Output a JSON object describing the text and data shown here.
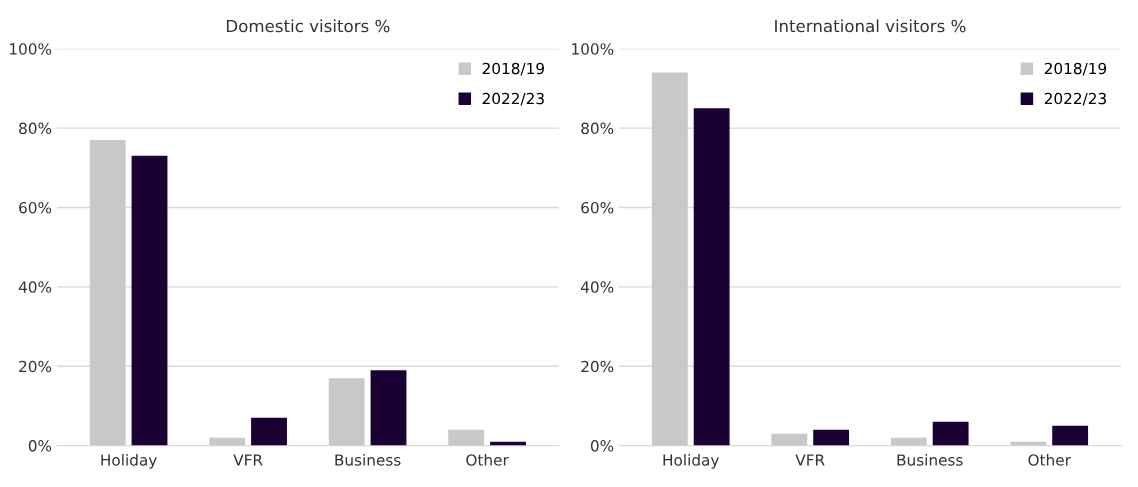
{
  "chart_data": [
    {
      "type": "bar",
      "title": "Domestic visitors %",
      "categories": [
        "Holiday",
        "VFR",
        "Business",
        "Other"
      ],
      "series": [
        {
          "name": "2018/19",
          "color": "#c8c8c8",
          "values": [
            77,
            2,
            17,
            4
          ]
        },
        {
          "name": "2022/23",
          "color": "#1a0033",
          "values": [
            73,
            7,
            19,
            1
          ]
        }
      ],
      "ylim": [
        0,
        100
      ],
      "yticks": [
        {
          "value": 0,
          "label": "0%"
        },
        {
          "value": 20,
          "label": "20%"
        },
        {
          "value": 40,
          "label": "40%"
        },
        {
          "value": 60,
          "label": "60%"
        },
        {
          "value": 80,
          "label": "80%"
        },
        {
          "value": 100,
          "label": "100%"
        }
      ],
      "grid": "y",
      "legend": "top right"
    },
    {
      "type": "bar",
      "title": "International visitors %",
      "categories": [
        "Holiday",
        "VFR",
        "Business",
        "Other"
      ],
      "series": [
        {
          "name": "2018/19",
          "color": "#c8c8c8",
          "values": [
            94,
            3,
            2,
            1
          ]
        },
        {
          "name": "2022/23",
          "color": "#1a0033",
          "values": [
            85,
            4,
            6,
            5
          ]
        }
      ],
      "ylim": [
        0,
        100
      ],
      "yticks": [
        {
          "value": 0,
          "label": "0%"
        },
        {
          "value": 20,
          "label": "20%"
        },
        {
          "value": 40,
          "label": "40%"
        },
        {
          "value": 60,
          "label": "60%"
        },
        {
          "value": 80,
          "label": "80%"
        },
        {
          "value": 100,
          "label": "100%"
        }
      ],
      "grid": "y",
      "legend": "top right"
    }
  ]
}
